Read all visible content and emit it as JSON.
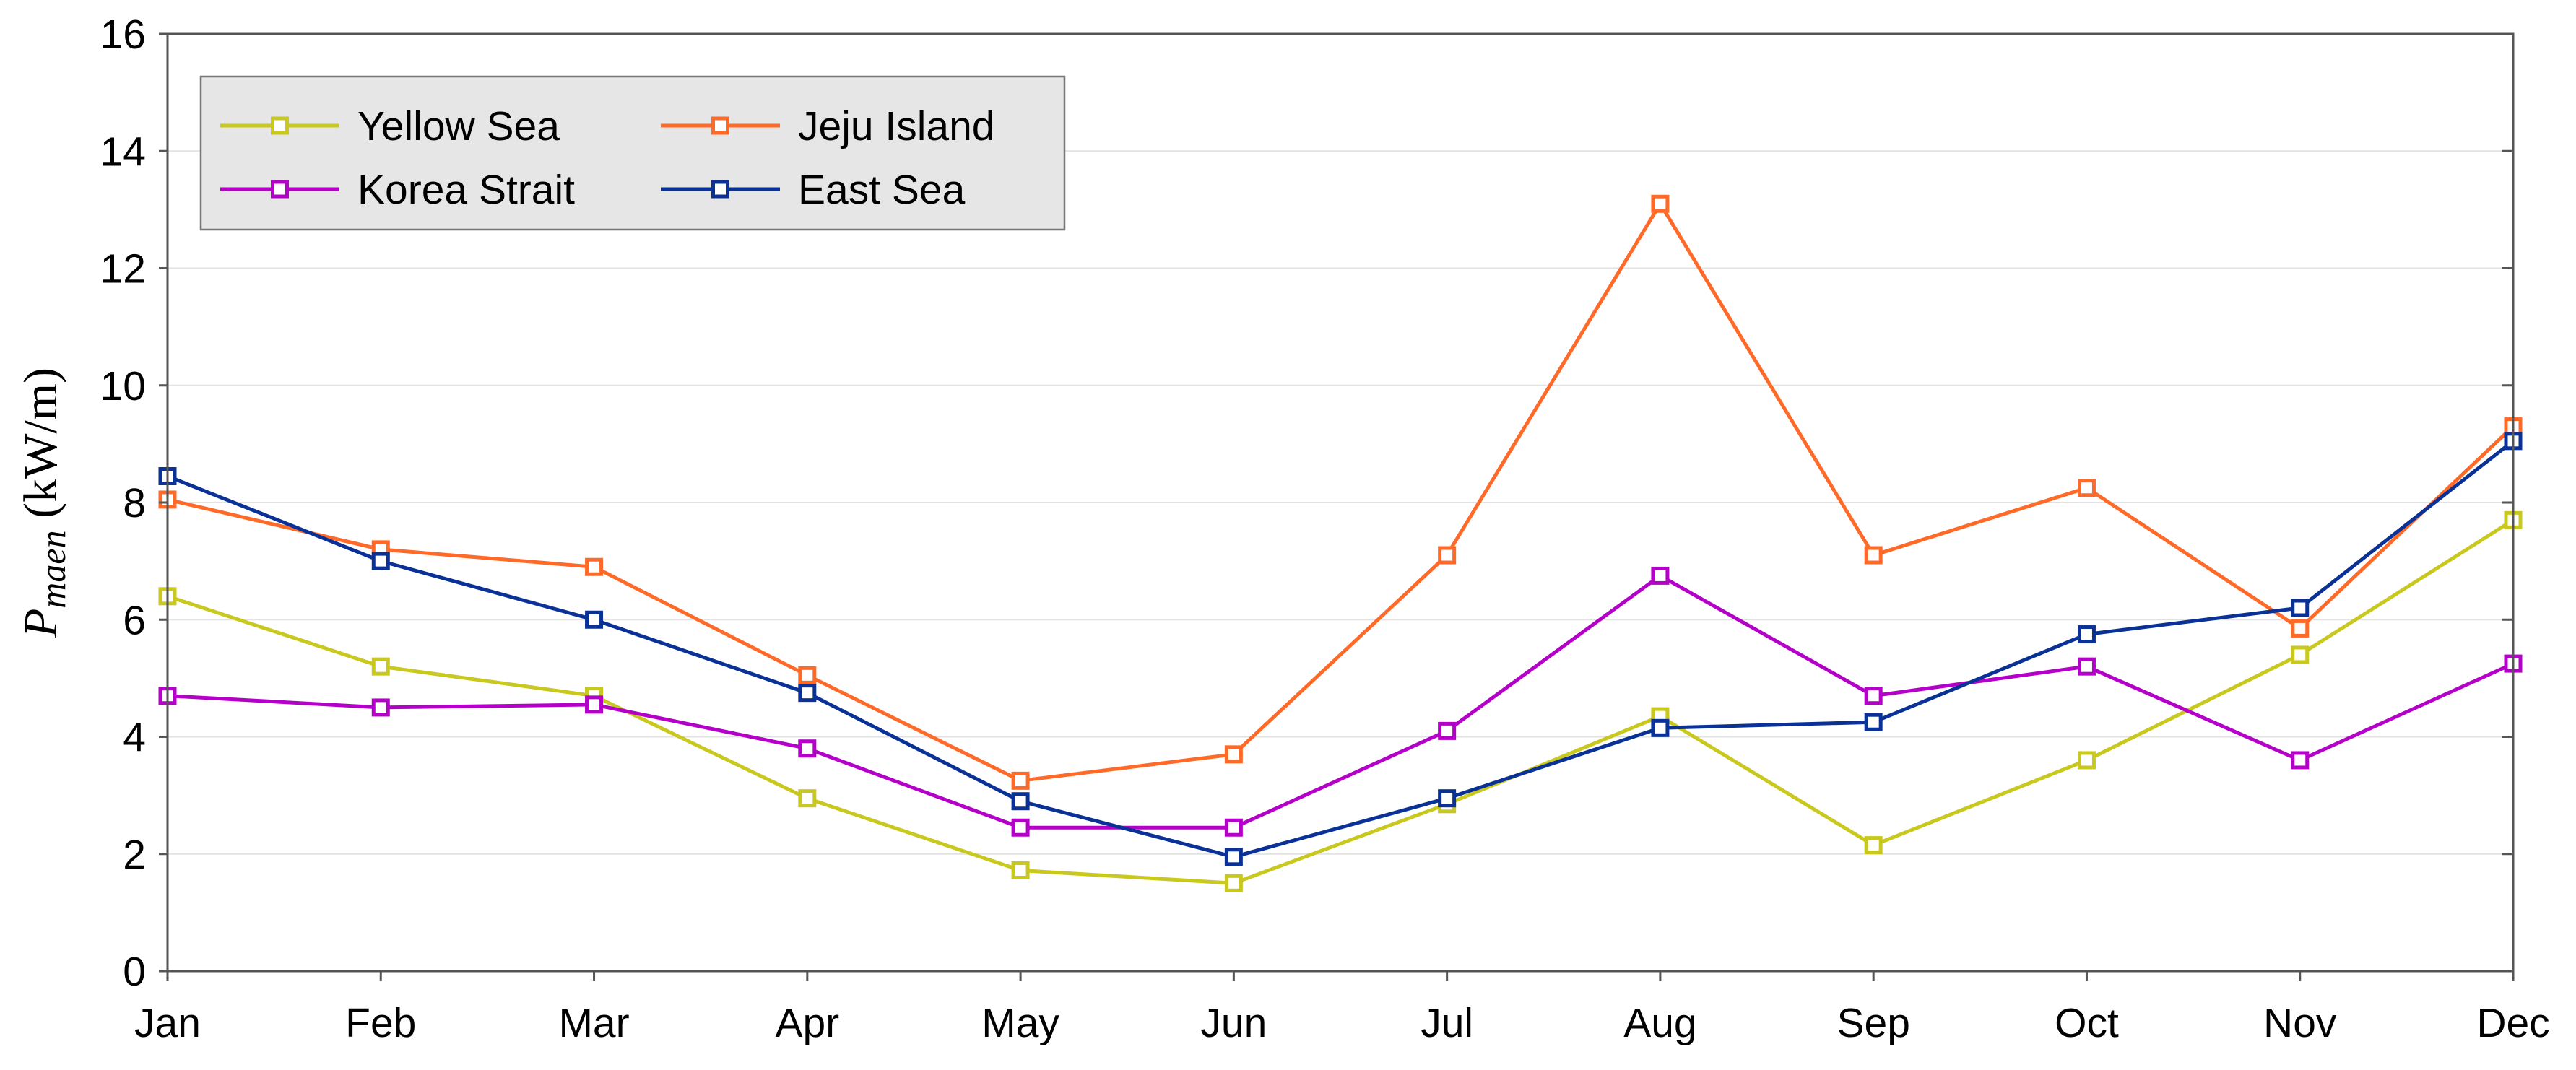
{
  "chart_data": {
    "type": "line",
    "categories": [
      "Jan",
      "Feb",
      "Mar",
      "Apr",
      "May",
      "Jun",
      "Jul",
      "Aug",
      "Sep",
      "Oct",
      "Nov",
      "Dec"
    ],
    "series": [
      {
        "name": "Yellow Sea",
        "color": "#c8c81e",
        "values": [
          6.4,
          5.2,
          4.7,
          2.95,
          1.72,
          1.5,
          2.85,
          4.35,
          2.15,
          3.6,
          5.4,
          7.7
        ]
      },
      {
        "name": "Jeju Island",
        "color": "#ff6a28",
        "values": [
          8.05,
          7.2,
          6.9,
          5.05,
          3.25,
          3.7,
          7.1,
          13.1,
          7.1,
          8.25,
          5.85,
          9.3
        ]
      },
      {
        "name": "Korea Strait",
        "color": "#b400c8",
        "values": [
          4.7,
          4.5,
          4.55,
          3.8,
          2.45,
          2.45,
          4.1,
          6.75,
          4.7,
          5.2,
          3.6,
          5.25
        ]
      },
      {
        "name": "East Sea",
        "color": "#0a3296",
        "values": [
          8.45,
          7.0,
          6.0,
          4.75,
          2.9,
          1.95,
          2.95,
          4.15,
          4.25,
          5.75,
          6.2,
          9.05
        ]
      }
    ],
    "ylabel_main": "P",
    "ylabel_sub": "maen",
    "ylabel_unit": " (kW/m)",
    "xlabel": "",
    "ylim": [
      0,
      16
    ],
    "yticks": [
      "0",
      "2",
      "4",
      "6",
      "8",
      "10",
      "12",
      "14",
      "16"
    ],
    "grid": true,
    "legend_position": "top-left",
    "marker": "square"
  }
}
